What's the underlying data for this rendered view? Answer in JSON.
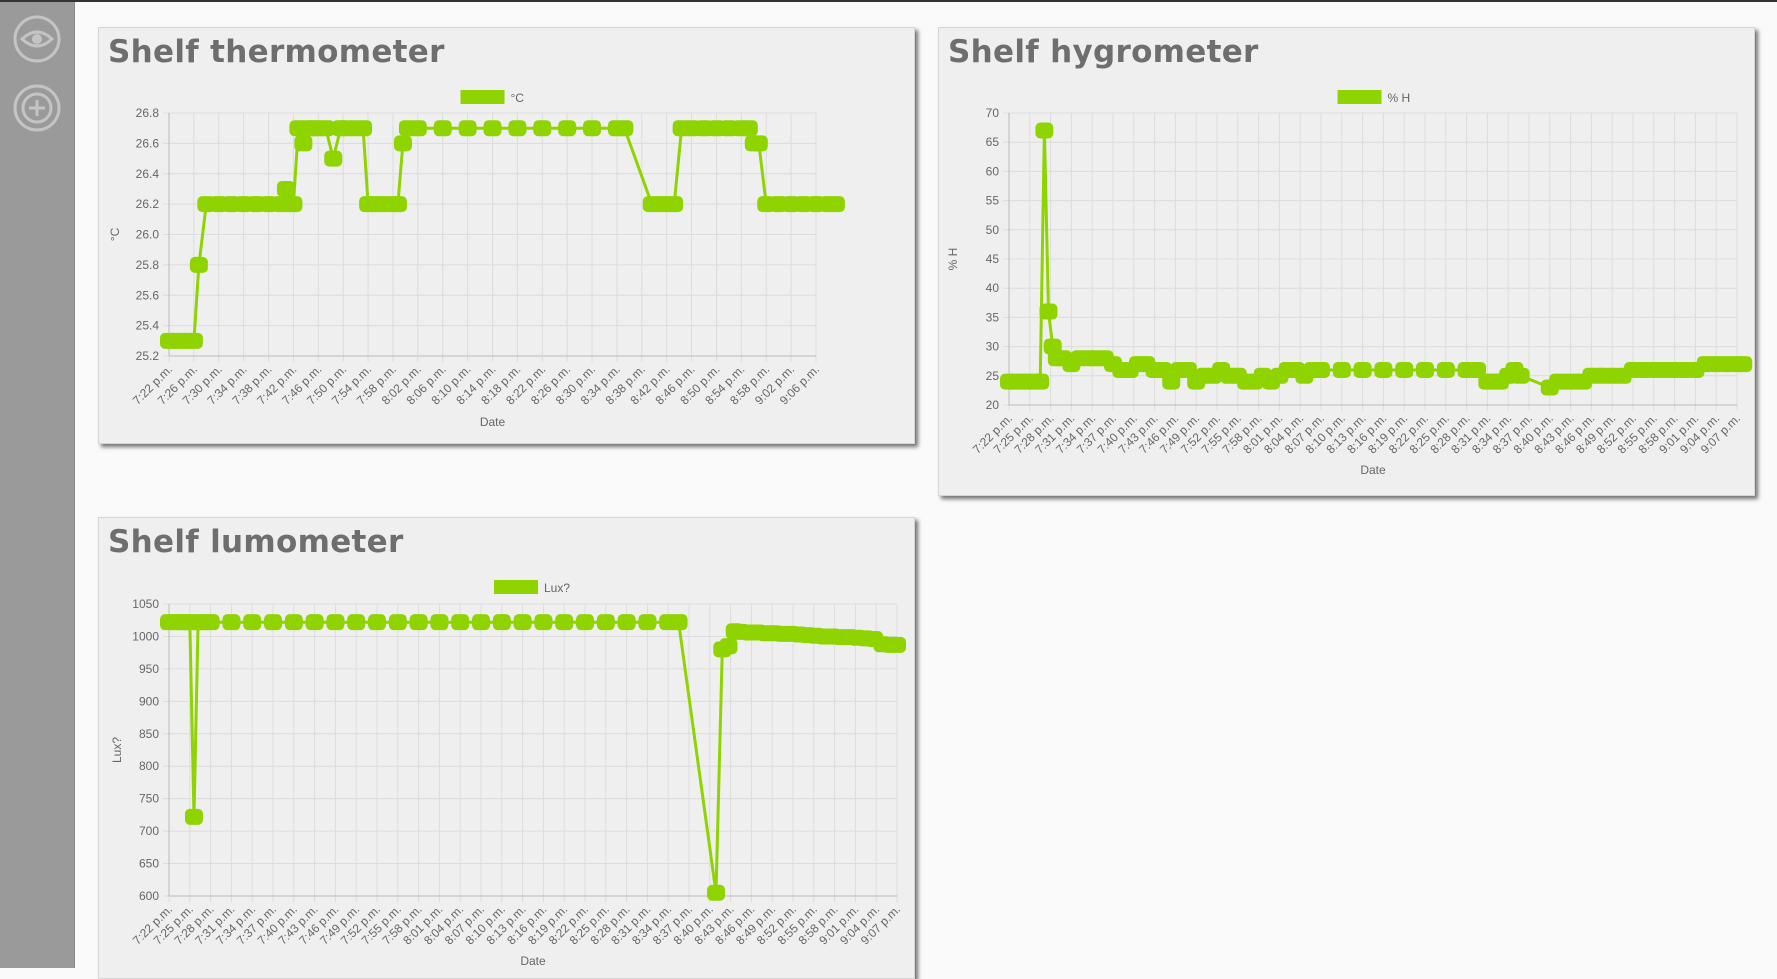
{
  "sidebar": {
    "items": [
      {
        "icon": "eye-icon"
      },
      {
        "icon": "add-circle-icon"
      }
    ]
  },
  "colors": {
    "series": "#8fd400",
    "grid": "#dcdcdc",
    "sidebar": "#9a9a9a"
  },
  "cards": [
    {
      "title": "Shelf thermometer"
    },
    {
      "title": "Shelf hygrometer"
    },
    {
      "title": "Shelf lumometer"
    }
  ],
  "chart_data": [
    {
      "type": "line",
      "title": "Shelf thermometer",
      "legend": "°C",
      "ylabel": "°C",
      "xlabel": "Date",
      "ylim": [
        25.2,
        26.8
      ],
      "yticks": [
        25.2,
        25.4,
        25.6,
        25.8,
        26.0,
        26.2,
        26.4,
        26.6,
        26.8
      ],
      "yformat": 1,
      "categories": [
        "7:22 p.m.",
        "7:26 p.m.",
        "7:30 p.m.",
        "7:34 p.m.",
        "7:38 p.m.",
        "7:42 p.m.",
        "7:46 p.m.",
        "7:50 p.m.",
        "7:54 p.m.",
        "7:58 p.m.",
        "8:02 p.m.",
        "8:06 p.m.",
        "8:10 p.m.",
        "8:14 p.m.",
        "8:18 p.m.",
        "8:22 p.m.",
        "8:26 p.m.",
        "8:30 p.m.",
        "8:34 p.m.",
        "8:38 p.m.",
        "8:42 p.m.",
        "8:46 p.m.",
        "8:50 p.m.",
        "8:54 p.m.",
        "8:58 p.m.",
        "9:02 p.m.",
        "9:06 p.m."
      ],
      "x": [
        0,
        0.25,
        0.5,
        0.75,
        1.0,
        1.2,
        1.5,
        2,
        2.5,
        3,
        3.5,
        4,
        4.5,
        4.7,
        4.8,
        5.0,
        5.2,
        5.4,
        5.6,
        5.8,
        6.0,
        6.3,
        6.6,
        6.9,
        7.0,
        7.4,
        7.8,
        8.0,
        8.3,
        8.6,
        9.0,
        9.2,
        9.4,
        9.6,
        10,
        11,
        12,
        13,
        14,
        15,
        16,
        17,
        18,
        18.3,
        19.4,
        19.7,
        20.0,
        20.3,
        20.6,
        21.0,
        21.5,
        22,
        22.5,
        23,
        23.3,
        23.5,
        23.7,
        24,
        24.5,
        25,
        25.5,
        26,
        26.5,
        26.8
      ],
      "values": [
        25.3,
        25.3,
        25.3,
        25.3,
        25.3,
        25.8,
        26.2,
        26.2,
        26.2,
        26.2,
        26.2,
        26.2,
        26.2,
        26.3,
        26.2,
        26.2,
        26.7,
        26.6,
        26.7,
        26.7,
        26.7,
        26.7,
        26.5,
        26.7,
        26.7,
        26.7,
        26.7,
        26.2,
        26.2,
        26.2,
        26.2,
        26.2,
        26.6,
        26.7,
        26.7,
        26.7,
        26.7,
        26.7,
        26.7,
        26.7,
        26.7,
        26.7,
        26.7,
        26.7,
        26.2,
        26.2,
        26.2,
        26.2,
        26.7,
        26.7,
        26.7,
        26.7,
        26.7,
        26.7,
        26.7,
        26.6,
        26.6,
        26.2,
        26.2,
        26.2,
        26.2,
        26.2,
        26.2,
        26.2
      ]
    },
    {
      "type": "line",
      "title": "Shelf hygrometer",
      "legend": "% H",
      "ylabel": "% H",
      "xlabel": "Date",
      "ylim": [
        20,
        70
      ],
      "yticks": [
        20,
        25,
        30,
        35,
        40,
        45,
        50,
        55,
        60,
        65,
        70
      ],
      "yformat": 0,
      "categories": [
        "7:22 p.m.",
        "7:25 p.m.",
        "7:28 p.m.",
        "7:31 p.m.",
        "7:34 p.m.",
        "7:37 p.m.",
        "7:40 p.m.",
        "7:43 p.m.",
        "7:46 p.m.",
        "7:49 p.m.",
        "7:52 p.m.",
        "7:55 p.m.",
        "7:58 p.m.",
        "8:01 p.m.",
        "8:04 p.m.",
        "8:07 p.m.",
        "8:10 p.m.",
        "8:13 p.m.",
        "8:16 p.m.",
        "8:19 p.m.",
        "8:22 p.m.",
        "8:25 p.m.",
        "8:28 p.m.",
        "8:31 p.m.",
        "8:34 p.m.",
        "8:37 p.m.",
        "8:40 p.m.",
        "8:43 p.m.",
        "8:46 p.m.",
        "8:49 p.m.",
        "8:52 p.m.",
        "8:55 p.m.",
        "8:58 p.m.",
        "9:01 p.m.",
        "9:04 p.m.",
        "9:07 p.m."
      ],
      "x": [
        0,
        0.3,
        0.6,
        0.9,
        1.2,
        1.5,
        1.7,
        1.9,
        2.1,
        2.3,
        2.6,
        3.0,
        3.4,
        3.8,
        4.2,
        4.6,
        5.0,
        5.4,
        5.8,
        6.2,
        6.6,
        7.0,
        7.4,
        7.8,
        8.2,
        8.6,
        9.0,
        9.4,
        9.8,
        10.2,
        10.6,
        11.0,
        11.4,
        11.8,
        12.2,
        12.6,
        13.0,
        13.4,
        13.8,
        14.2,
        14.6,
        15.0,
        16,
        17,
        18,
        19,
        20,
        21,
        22,
        22.5,
        23.0,
        23.3,
        23.6,
        24.0,
        24.3,
        24.6,
        26.0,
        26.4,
        26.8,
        27.2,
        27.6,
        28.0,
        28.5,
        29.0,
        29.5,
        30.0,
        30.5,
        31.0,
        31.5,
        32.0,
        32.5,
        33.0,
        33.5,
        34.0,
        34.5,
        35.0,
        35.3
      ],
      "values": [
        24,
        24,
        24,
        24,
        24,
        24,
        67,
        36,
        30,
        28,
        28,
        27,
        28,
        28,
        28,
        28,
        27,
        26,
        26,
        27,
        27,
        26,
        26,
        24,
        26,
        26,
        24,
        25,
        25,
        26,
        25,
        25,
        24,
        24,
        25,
        24,
        25,
        26,
        26,
        25,
        26,
        26,
        26,
        26,
        26,
        26,
        26,
        26,
        26,
        26,
        24,
        24,
        24,
        25,
        26,
        25,
        23,
        24,
        24,
        24,
        24,
        25,
        25,
        25,
        25,
        26,
        26,
        26,
        26,
        26,
        26,
        26,
        27,
        27,
        27,
        27,
        27
      ]
    },
    {
      "type": "line",
      "title": "Shelf lumometer",
      "legend": "Lux?",
      "ylabel": "Lux?",
      "xlabel": "Date",
      "ylim": [
        600,
        1050
      ],
      "yticks": [
        600,
        650,
        700,
        750,
        800,
        850,
        900,
        950,
        1000,
        1050
      ],
      "yformat": 0,
      "categories": [
        "7:22 p.m.",
        "7:25 p.m.",
        "7:28 p.m.",
        "7:31 p.m.",
        "7:34 p.m.",
        "7:37 p.m.",
        "7:40 p.m.",
        "7:43 p.m.",
        "7:46 p.m.",
        "7:49 p.m.",
        "7:52 p.m.",
        "7:55 p.m.",
        "7:58 p.m.",
        "8:01 p.m.",
        "8:04 p.m.",
        "8:07 p.m.",
        "8:10 p.m.",
        "8:13 p.m.",
        "8:16 p.m.",
        "8:19 p.m.",
        "8:22 p.m.",
        "8:25 p.m.",
        "8:28 p.m.",
        "8:31 p.m.",
        "8:34 p.m.",
        "8:37 p.m.",
        "8:40 p.m.",
        "8:43 p.m.",
        "8:46 p.m.",
        "8:49 p.m.",
        "8:52 p.m.",
        "8:55 p.m.",
        "8:58 p.m.",
        "9:01 p.m.",
        "9:04 p.m.",
        "9:07 p.m."
      ],
      "x": [
        0,
        0.3,
        0.6,
        0.8,
        1.0,
        1.2,
        1.4,
        1.7,
        2,
        3,
        4,
        5,
        6,
        7,
        8,
        9,
        10,
        11,
        12,
        13,
        14,
        15,
        16,
        17,
        18,
        19,
        20,
        21,
        22,
        23,
        24,
        24.5,
        26.3,
        26.6,
        26.9,
        27.2,
        27.5,
        27.9,
        28.3,
        28.7,
        29.1,
        29.5,
        29.9,
        30.3,
        30.7,
        31.1,
        31.5,
        31.9,
        32.3,
        32.7,
        33.1,
        33.5,
        33.9,
        34.3,
        34.7,
        35.0
      ],
      "values": [
        1022,
        1022,
        1022,
        1022,
        1022,
        722,
        1022,
        1022,
        1022,
        1022,
        1022,
        1022,
        1022,
        1022,
        1022,
        1022,
        1022,
        1022,
        1022,
        1022,
        1022,
        1022,
        1022,
        1022,
        1022,
        1022,
        1022,
        1022,
        1022,
        1022,
        1022,
        1022,
        605,
        980,
        985,
        1008,
        1007,
        1006,
        1006,
        1005,
        1005,
        1004,
        1004,
        1003,
        1002,
        1001,
        1000,
        1000,
        999,
        999,
        998,
        997,
        996,
        988,
        987,
        987
      ]
    }
  ]
}
